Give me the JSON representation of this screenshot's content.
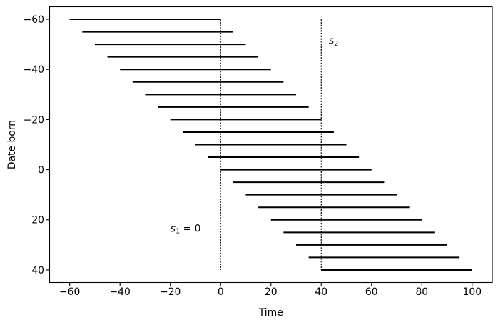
{
  "chart_data": {
    "type": "line",
    "title": "",
    "xlabel": "Time",
    "ylabel": "Date born",
    "xlim": [
      -68,
      108
    ],
    "ylim": [
      45,
      -65
    ],
    "y_axis_inverted": true,
    "xticks": [
      -60,
      -40,
      -20,
      0,
      20,
      40,
      60,
      80,
      100
    ],
    "yticks": [
      -60,
      -40,
      -20,
      0,
      20,
      40
    ],
    "grid": false,
    "background_color": "#ffffff",
    "line_color": "#000000",
    "lifespan_segments_comment": "horizontal segments: each individual born at 'born' lives until 'died'; plotted at y = born",
    "lifespan_segments": [
      {
        "born": -60,
        "died": 0
      },
      {
        "born": -55,
        "died": 5
      },
      {
        "born": -50,
        "died": 10
      },
      {
        "born": -45,
        "died": 15
      },
      {
        "born": -40,
        "died": 20
      },
      {
        "born": -35,
        "died": 25
      },
      {
        "born": -30,
        "died": 30
      },
      {
        "born": -25,
        "died": 35
      },
      {
        "born": -20,
        "died": 40
      },
      {
        "born": -15,
        "died": 45
      },
      {
        "born": -10,
        "died": 50
      },
      {
        "born": -5,
        "died": 55
      },
      {
        "born": 0,
        "died": 60
      },
      {
        "born": 5,
        "died": 65
      },
      {
        "born": 10,
        "died": 70
      },
      {
        "born": 15,
        "died": 75
      },
      {
        "born": 20,
        "died": 80
      },
      {
        "born": 25,
        "died": 85
      },
      {
        "born": 30,
        "died": 90
      },
      {
        "born": 35,
        "died": 95
      },
      {
        "born": 40,
        "died": 100
      }
    ],
    "observation_lines": [
      {
        "x": 0,
        "y0": -60,
        "y1": 40,
        "style": "dotted",
        "label": "s1 = 0",
        "label_base": "s",
        "label_sub": "1",
        "label_rest": " = 0",
        "label_x": -20,
        "label_y": 24.7
      },
      {
        "x": 40,
        "y0": -60,
        "y1": 40,
        "style": "dotted",
        "label": "s2",
        "label_base": "s",
        "label_sub": "2",
        "label_rest": "",
        "label_x": 43,
        "label_y": -50.2
      }
    ]
  }
}
